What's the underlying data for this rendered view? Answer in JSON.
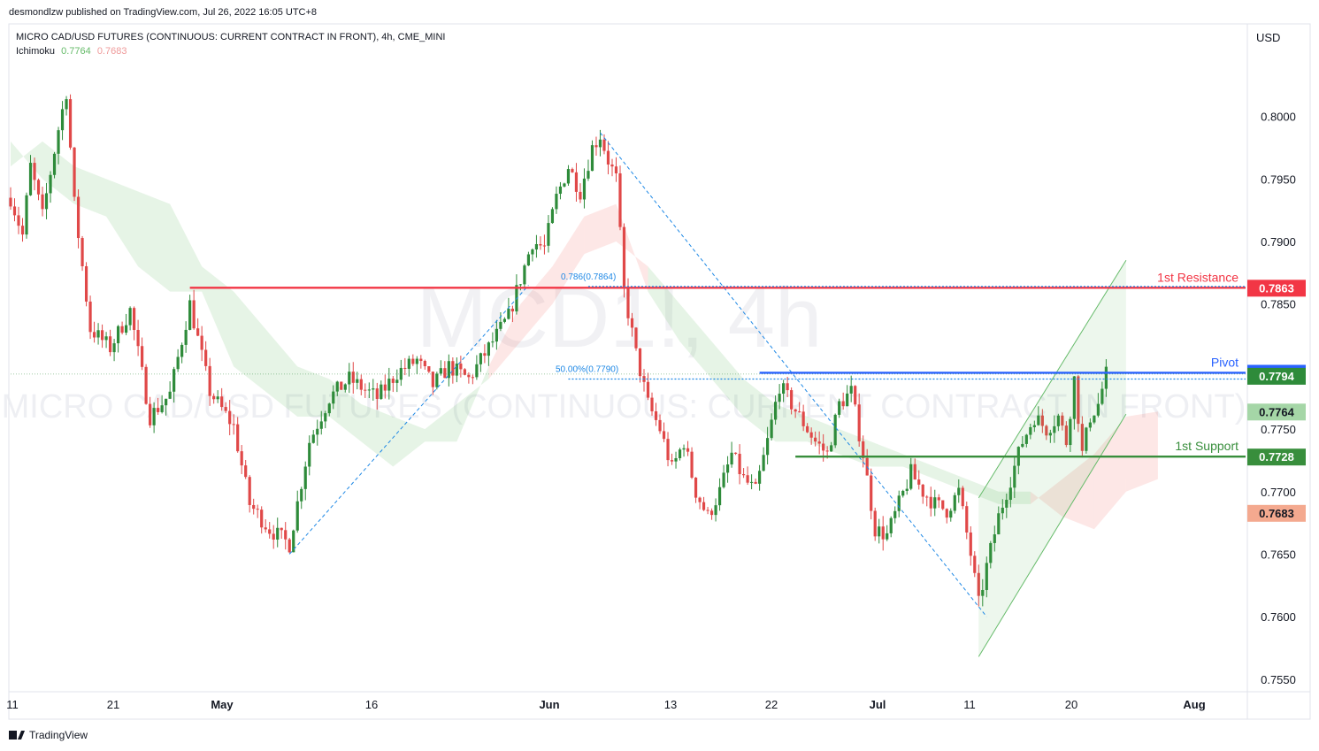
{
  "header": {
    "published": "desmondlzw published on TradingView.com, Jul 26, 2022 16:05 UTC+8",
    "symbol": "MICRO CAD/USD FUTURES (CONTINUOUS: CURRENT CONTRACT IN FRONT), 4h, CME_MINI",
    "indicator": "Ichimoku",
    "indicator_v1": "0.7764",
    "indicator_v2": "0.7683",
    "currency": "USD"
  },
  "watermark": {
    "big": "MCD1!, 4h",
    "small": "MICRO CAD/USD FUTURES (CONTINUOUS: CURRENT CONTRACT IN FRONT)"
  },
  "footer": {
    "brand": "TradingView"
  },
  "colors": {
    "up": "#2e8b3a",
    "down": "#e04848",
    "resistance": "#f23645",
    "pivot": "#2962ff",
    "support": "#388e3c",
    "cloud_green": "#4caf50",
    "cloud_red": "#ef5350",
    "fib": "#1e88e5"
  },
  "chart_data": {
    "type": "candlestick",
    "interval": "4h",
    "y_range": [
      0.754,
      0.808
    ],
    "y_ticks": [
      0.8,
      0.795,
      0.79,
      0.785,
      0.775,
      0.77,
      0.765,
      0.76,
      0.755
    ],
    "y_tick_labels": [
      "0.8000",
      "0.7950",
      "0.7900",
      "0.7850",
      "0.7750",
      "0.7700",
      "0.7650",
      "0.7600",
      "0.7550"
    ],
    "x_ticks": [
      "11",
      "21",
      "May",
      "16",
      "Jun",
      "13",
      "22",
      "Jul",
      "11",
      "20",
      "Aug"
    ],
    "swing_path": [
      [
        0,
        0.7935
      ],
      [
        3,
        0.7905
      ],
      [
        5,
        0.796
      ],
      [
        8,
        0.792
      ],
      [
        12,
        0.799
      ],
      [
        14,
        0.802
      ],
      [
        16,
        0.793
      ],
      [
        20,
        0.783
      ],
      [
        25,
        0.7815
      ],
      [
        30,
        0.7845
      ],
      [
        35,
        0.776
      ],
      [
        40,
        0.7778
      ],
      [
        45,
        0.785
      ],
      [
        50,
        0.778
      ],
      [
        56,
        0.7752
      ],
      [
        60,
        0.769
      ],
      [
        65,
        0.767
      ],
      [
        70,
        0.7658
      ],
      [
        75,
        0.774
      ],
      [
        80,
        0.7775
      ],
      [
        85,
        0.779
      ],
      [
        92,
        0.7775
      ],
      [
        97,
        0.7795
      ],
      [
        102,
        0.7805
      ],
      [
        106,
        0.7785
      ],
      [
        110,
        0.78
      ],
      [
        115,
        0.779
      ],
      [
        120,
        0.7815
      ],
      [
        125,
        0.784
      ],
      [
        128,
        0.787
      ],
      [
        131,
        0.79
      ],
      [
        134,
        0.7895
      ],
      [
        137,
        0.7935
      ],
      [
        140,
        0.796
      ],
      [
        143,
        0.794
      ],
      [
        146,
        0.7975
      ],
      [
        148,
        0.7985
      ],
      [
        150,
        0.7965
      ],
      [
        152,
        0.795
      ],
      [
        154,
        0.786
      ],
      [
        157,
        0.781
      ],
      [
        160,
        0.777
      ],
      [
        163,
        0.775
      ],
      [
        166,
        0.7718
      ],
      [
        169,
        0.774
      ],
      [
        172,
        0.77
      ],
      [
        175,
        0.768
      ],
      [
        178,
        0.77
      ],
      [
        181,
        0.773
      ],
      [
        184,
        0.771
      ],
      [
        187,
        0.77
      ],
      [
        190,
        0.774
      ],
      [
        193,
        0.7785
      ],
      [
        196,
        0.777
      ],
      [
        199,
        0.7755
      ],
      [
        202,
        0.774
      ],
      [
        205,
        0.773
      ],
      [
        208,
        0.777
      ],
      [
        211,
        0.778
      ],
      [
        214,
        0.773
      ],
      [
        217,
        0.767
      ],
      [
        220,
        0.7665
      ],
      [
        223,
        0.769
      ],
      [
        226,
        0.7715
      ],
      [
        229,
        0.77
      ],
      [
        232,
        0.769
      ],
      [
        235,
        0.7685
      ],
      [
        238,
        0.77
      ],
      [
        241,
        0.765
      ],
      [
        243,
        0.761
      ],
      [
        245,
        0.764
      ],
      [
        248,
        0.768
      ],
      [
        251,
        0.771
      ],
      [
        254,
        0.774
      ],
      [
        257,
        0.776
      ],
      [
        260,
        0.775
      ],
      [
        263,
        0.776
      ],
      [
        265,
        0.774
      ],
      [
        267,
        0.779
      ],
      [
        269,
        0.773
      ],
      [
        271,
        0.776
      ],
      [
        273,
        0.777
      ],
      [
        275,
        0.7794
      ]
    ],
    "cloud": [
      [
        0,
        0.796,
        0.798
      ],
      [
        8,
        0.798,
        0.795
      ],
      [
        16,
        0.796,
        0.793
      ],
      [
        24,
        0.795,
        0.792
      ],
      [
        32,
        0.794,
        0.788
      ],
      [
        40,
        0.793,
        0.786
      ],
      [
        48,
        0.788,
        0.786
      ],
      [
        56,
        0.786,
        0.78
      ],
      [
        64,
        0.783,
        0.778
      ],
      [
        72,
        0.78,
        0.776
      ],
      [
        80,
        0.779,
        0.776
      ],
      [
        88,
        0.777,
        0.774
      ],
      [
        96,
        0.776,
        0.772
      ],
      [
        104,
        0.775,
        0.774
      ],
      [
        112,
        0.777,
        0.774
      ],
      [
        120,
        0.779,
        0.78
      ],
      [
        128,
        0.782,
        0.785
      ],
      [
        136,
        0.785,
        0.788
      ],
      [
        144,
        0.789,
        0.792
      ],
      [
        152,
        0.79,
        0.793
      ],
      [
        160,
        0.788,
        0.786
      ],
      [
        168,
        0.785,
        0.782
      ],
      [
        176,
        0.782,
        0.779
      ],
      [
        184,
        0.779,
        0.776
      ],
      [
        192,
        0.777,
        0.774
      ],
      [
        200,
        0.776,
        0.774
      ],
      [
        208,
        0.775,
        0.773
      ],
      [
        216,
        0.774,
        0.772
      ],
      [
        224,
        0.773,
        0.772
      ],
      [
        232,
        0.772,
        0.771
      ],
      [
        240,
        0.771,
        0.77
      ],
      [
        248,
        0.77,
        0.769
      ],
      [
        256,
        0.77,
        0.769
      ],
      [
        264,
        0.768,
        0.771
      ],
      [
        272,
        0.767,
        0.773
      ],
      [
        280,
        0.77,
        0.776
      ],
      [
        288,
        0.771,
        0.7764
      ]
    ],
    "levels": {
      "resistance": {
        "label": "1st Resistance",
        "value": 0.7863,
        "value_label": "0.7863"
      },
      "pivot": {
        "label": "Pivot",
        "value": 0.7795,
        "value_label": "0.7795"
      },
      "support": {
        "label": "1st Support",
        "value": 0.7728,
        "value_label": "0.7728"
      }
    },
    "price_labels": [
      {
        "name": "last-price",
        "value": 0.7794,
        "text": "0.7794",
        "color": "#2e8b3a"
      },
      {
        "name": "ichimoku-a",
        "value": 0.7764,
        "text": "0.7764",
        "color": "#a5d6a7"
      },
      {
        "name": "ichimoku-b",
        "value": 0.7683,
        "text": "0.7683",
        "color": "#f4a98f"
      }
    ],
    "fib_labels": [
      {
        "text": "0.786(0.7864)",
        "value": 0.7864
      },
      {
        "text": "50.00%(0.7790)",
        "value": 0.779
      }
    ],
    "channel": {
      "lower": [
        [
          243,
          0.7568
        ],
        [
          280,
          0.7762
        ]
      ],
      "upper": [
        [
          243,
          0.7695
        ],
        [
          280,
          0.7885
        ]
      ]
    },
    "fib_swings": [
      [
        [
          70,
          0.765
        ],
        [
          130,
          0.7865
        ]
      ],
      [
        [
          148,
          0.7987
        ],
        [
          245,
          0.76
        ]
      ]
    ]
  }
}
